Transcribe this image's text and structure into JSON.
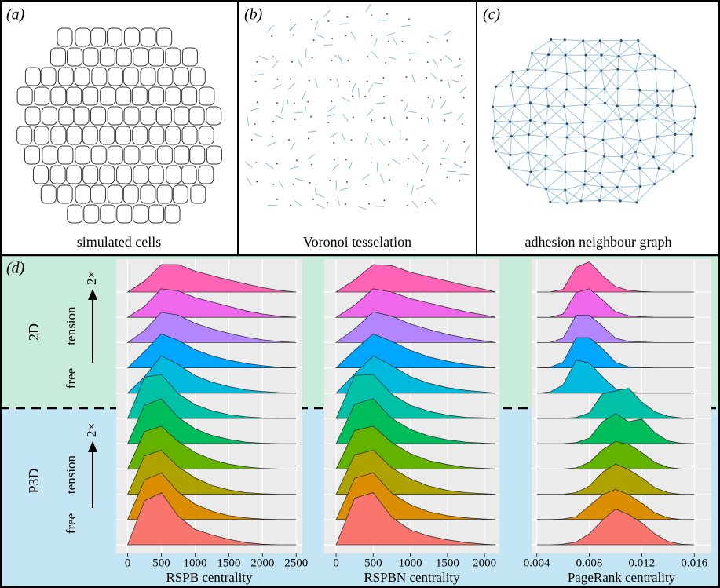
{
  "panels": [
    {
      "letter": "(a)",
      "caption": "simulated cells"
    },
    {
      "letter": "(b)",
      "caption": "Voronoi tesselation"
    },
    {
      "letter": "(c)",
      "caption": "adhesion neighbour graph"
    }
  ],
  "panel_d": {
    "letter": "(d)"
  },
  "groups": [
    {
      "label": "2D",
      "axis_text": "tension",
      "low": "free",
      "high": "2×",
      "color": "#c9ebd9"
    },
    {
      "label": "P3D",
      "axis_text": "tension",
      "low": "free",
      "high": "2×",
      "color": "#c3e5f4"
    }
  ],
  "chart_data": [
    {
      "type": "ridgeline",
      "xlabel": "RSPB centrality",
      "xlim": [
        -170,
        2590
      ],
      "xticks": [
        0,
        500,
        1000,
        1500,
        2000,
        2500
      ],
      "x": [
        0,
        250,
        500,
        750,
        1000,
        1250,
        1500,
        1750,
        2000,
        2250,
        2500
      ],
      "series": [
        {
          "color": "#FF63B6",
          "values": [
            0,
            0.2,
            0.5,
            0.5,
            0.38,
            0.3,
            0.22,
            0.15,
            0.08,
            0.03,
            0
          ]
        },
        {
          "color": "#EF67EB",
          "values": [
            0,
            0.2,
            0.52,
            0.48,
            0.36,
            0.28,
            0.2,
            0.12,
            0.06,
            0.02,
            0
          ]
        },
        {
          "color": "#B385FF",
          "values": [
            0,
            0.22,
            0.55,
            0.5,
            0.35,
            0.25,
            0.17,
            0.1,
            0.05,
            0.02,
            0
          ]
        },
        {
          "color": "#00A6FF",
          "values": [
            0,
            0.3,
            0.62,
            0.5,
            0.33,
            0.22,
            0.14,
            0.08,
            0.04,
            0.01,
            0
          ]
        },
        {
          "color": "#00BADE",
          "values": [
            0,
            0.3,
            0.68,
            0.52,
            0.32,
            0.2,
            0.12,
            0.06,
            0.03,
            0.01,
            0
          ]
        },
        {
          "color": "#00C1A7",
          "values": [
            0,
            0.75,
            0.8,
            0.45,
            0.25,
            0.14,
            0.07,
            0.03,
            0.01,
            0,
            0
          ]
        },
        {
          "color": "#00BD5C",
          "values": [
            0,
            0.7,
            0.82,
            0.48,
            0.27,
            0.15,
            0.08,
            0.03,
            0.01,
            0,
            0
          ]
        },
        {
          "color": "#64B200",
          "values": [
            0,
            0.68,
            0.78,
            0.5,
            0.3,
            0.17,
            0.09,
            0.04,
            0.01,
            0,
            0
          ]
        },
        {
          "color": "#AEA200",
          "values": [
            0,
            0.7,
            0.8,
            0.5,
            0.3,
            0.16,
            0.08,
            0.03,
            0.01,
            0,
            0
          ]
        },
        {
          "color": "#DB8E00",
          "values": [
            0,
            0.72,
            0.85,
            0.5,
            0.28,
            0.15,
            0.07,
            0.03,
            0.01,
            0,
            0
          ]
        },
        {
          "color": "#F8766D",
          "values": [
            0,
            0.8,
            0.95,
            0.52,
            0.28,
            0.18,
            0.1,
            0.04,
            0.01,
            0,
            0
          ]
        }
      ]
    },
    {
      "type": "ridgeline",
      "xlabel": "RSPBN centrality",
      "xlim": [
        -160,
        2200
      ],
      "xticks": [
        0,
        500,
        1000,
        1500,
        2000
      ],
      "x": [
        0,
        250,
        500,
        750,
        1000,
        1250,
        1500,
        1750,
        2000,
        2150
      ],
      "series": [
        {
          "color": "#FF63B6",
          "values": [
            0,
            0.22,
            0.5,
            0.48,
            0.36,
            0.28,
            0.2,
            0.12,
            0.05,
            0
          ]
        },
        {
          "color": "#EF67EB",
          "values": [
            0,
            0.22,
            0.52,
            0.46,
            0.34,
            0.26,
            0.18,
            0.1,
            0.04,
            0
          ]
        },
        {
          "color": "#B385FF",
          "values": [
            0,
            0.25,
            0.56,
            0.48,
            0.34,
            0.24,
            0.15,
            0.08,
            0.03,
            0
          ]
        },
        {
          "color": "#00A6FF",
          "values": [
            0,
            0.32,
            0.62,
            0.48,
            0.32,
            0.2,
            0.12,
            0.06,
            0.02,
            0
          ]
        },
        {
          "color": "#00BADE",
          "values": [
            0,
            0.35,
            0.68,
            0.5,
            0.3,
            0.18,
            0.1,
            0.05,
            0.02,
            0
          ]
        },
        {
          "color": "#00C1A7",
          "values": [
            0,
            0.78,
            0.8,
            0.44,
            0.24,
            0.13,
            0.06,
            0.02,
            0.01,
            0
          ]
        },
        {
          "color": "#00BD5C",
          "values": [
            0,
            0.72,
            0.82,
            0.46,
            0.26,
            0.14,
            0.07,
            0.03,
            0.01,
            0
          ]
        },
        {
          "color": "#64B200",
          "values": [
            0,
            0.7,
            0.78,
            0.48,
            0.28,
            0.15,
            0.08,
            0.03,
            0.01,
            0
          ]
        },
        {
          "color": "#AEA200",
          "values": [
            0,
            0.72,
            0.8,
            0.48,
            0.28,
            0.15,
            0.07,
            0.03,
            0.01,
            0
          ]
        },
        {
          "color": "#DB8E00",
          "values": [
            0,
            0.75,
            0.85,
            0.48,
            0.27,
            0.14,
            0.07,
            0.03,
            0.01,
            0
          ]
        },
        {
          "color": "#F8766D",
          "values": [
            0,
            0.85,
            0.95,
            0.5,
            0.27,
            0.16,
            0.09,
            0.04,
            0.01,
            0
          ]
        }
      ]
    },
    {
      "type": "ridgeline",
      "xlabel": "PageRank centrality",
      "xlim": [
        0.0036,
        0.0173
      ],
      "xticks": [
        0.004,
        0.008,
        0.012,
        0.016
      ],
      "x": [
        0.004,
        0.005,
        0.006,
        0.007,
        0.008,
        0.009,
        0.01,
        0.011,
        0.012,
        0.013,
        0.014,
        0.015,
        0.016
      ],
      "series": [
        {
          "color": "#FF63B6",
          "values": [
            0,
            0,
            0.05,
            0.45,
            0.55,
            0.3,
            0.1,
            0.03,
            0.01,
            0,
            0,
            0,
            0
          ]
        },
        {
          "color": "#EF67EB",
          "values": [
            0,
            0,
            0.06,
            0.45,
            0.52,
            0.32,
            0.1,
            0.03,
            0.01,
            0,
            0,
            0,
            0
          ]
        },
        {
          "color": "#B385FF",
          "values": [
            0,
            0,
            0.08,
            0.5,
            0.5,
            0.3,
            0.08,
            0.02,
            0.01,
            0,
            0,
            0,
            0
          ]
        },
        {
          "color": "#00A6FF",
          "values": [
            0,
            0.01,
            0.1,
            0.55,
            0.55,
            0.35,
            0.1,
            0.02,
            0.01,
            0,
            0,
            0,
            0
          ]
        },
        {
          "color": "#00BADE",
          "values": [
            0,
            0.02,
            0.15,
            0.6,
            0.55,
            0.3,
            0.08,
            0.02,
            0,
            0,
            0,
            0,
            0
          ]
        },
        {
          "color": "#00C1A7",
          "values": [
            0,
            0,
            0,
            0.02,
            0.1,
            0.45,
            0.5,
            0.55,
            0.3,
            0.12,
            0.04,
            0.01,
            0
          ]
        },
        {
          "color": "#00BD5C",
          "values": [
            0,
            0,
            0,
            0.02,
            0.1,
            0.4,
            0.55,
            0.4,
            0.45,
            0.2,
            0.05,
            0.01,
            0
          ]
        },
        {
          "color": "#64B200",
          "values": [
            0,
            0,
            0,
            0.02,
            0.12,
            0.35,
            0.5,
            0.45,
            0.3,
            0.12,
            0.03,
            0,
            0
          ]
        },
        {
          "color": "#AEA200",
          "values": [
            0,
            0,
            0,
            0.03,
            0.15,
            0.4,
            0.55,
            0.45,
            0.3,
            0.12,
            0.03,
            0,
            0
          ]
        },
        {
          "color": "#DB8E00",
          "values": [
            0,
            0,
            0.01,
            0.05,
            0.25,
            0.45,
            0.55,
            0.45,
            0.3,
            0.12,
            0.03,
            0,
            0
          ]
        },
        {
          "color": "#F8766D",
          "values": [
            0,
            0,
            0.01,
            0.05,
            0.2,
            0.45,
            0.65,
            0.55,
            0.4,
            0.2,
            0.06,
            0.01,
            0
          ]
        }
      ]
    }
  ]
}
